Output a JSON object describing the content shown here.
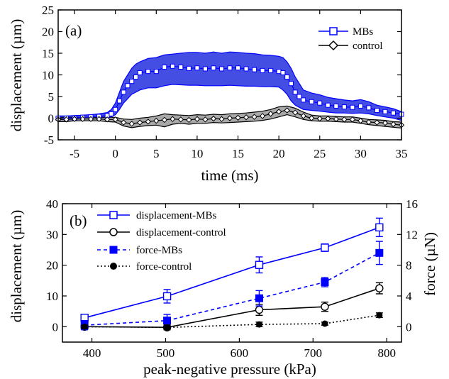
{
  "chart_data": [
    {
      "panel": "(a)",
      "type": "line",
      "xlabel": "time (ms)",
      "ylabel": "displacement (µm)",
      "xlim": [
        -7,
        35
      ],
      "ylim": [
        -5,
        25
      ],
      "xticks": [
        -5,
        0,
        5,
        10,
        15,
        20,
        25,
        30,
        35
      ],
      "yticks": [
        -5,
        0,
        5,
        10,
        15,
        20,
        25
      ],
      "legend_position": "top-right",
      "series": [
        {
          "name": "MBs",
          "color": "#0000ff",
          "band_color": "#3b44e0",
          "marker": "open-square",
          "x": [
            -7,
            -6,
            -5,
            -4,
            -3,
            -2,
            -1,
            -0.5,
            0,
            0.5,
            1,
            1.5,
            2,
            2.5,
            3,
            4,
            5,
            6,
            7,
            8,
            9,
            10,
            11,
            12,
            13,
            14,
            15,
            16,
            17,
            18,
            19,
            20,
            20.5,
            21,
            21.5,
            22,
            22.5,
            23,
            24,
            25,
            26,
            27,
            28,
            29,
            30,
            31,
            32,
            33,
            34,
            35
          ],
          "y": [
            0,
            0,
            0,
            0.2,
            0.3,
            0.4,
            0.6,
            1,
            2,
            4,
            6,
            7.5,
            8.5,
            9.5,
            10.5,
            10.8,
            10.8,
            11.8,
            12,
            11.8,
            11.5,
            11.6,
            11.4,
            11.6,
            11.4,
            11.6,
            11.6,
            11.4,
            11.2,
            11,
            11,
            10.8,
            10.5,
            9.5,
            8,
            6,
            5,
            4.2,
            3.8,
            3.5,
            3,
            2.8,
            2.6,
            2.5,
            2.8,
            2.4,
            1.8,
            1.5,
            1.2,
            0.9
          ],
          "lower": [
            -0.5,
            -0.5,
            -0.4,
            -0.3,
            -0.2,
            -0.2,
            0,
            0.3,
            0.8,
            2,
            3.5,
            4.5,
            5.5,
            6,
            6.5,
            7,
            7,
            7.5,
            7.8,
            7.7,
            7.6,
            7.6,
            7.5,
            7.5,
            7.5,
            7.6,
            7.5,
            7.4,
            7.4,
            7.3,
            7.3,
            7.2,
            6.5,
            5.5,
            4,
            3,
            2.5,
            2,
            1.8,
            1.6,
            1.4,
            1.2,
            1.2,
            1.1,
            1.2,
            1,
            0.6,
            0.3,
            0,
            -0.5
          ],
          "upper": [
            0.5,
            0.5,
            0.6,
            0.7,
            0.8,
            1,
            1.3,
            2,
            3.5,
            6,
            8.5,
            10,
            11.5,
            12.5,
            13,
            13.8,
            14,
            14.6,
            14.8,
            15,
            15.2,
            15.2,
            15,
            15.3,
            15,
            15.3,
            15.2,
            15,
            14.9,
            14.6,
            14.5,
            14.3,
            14,
            13,
            11.5,
            9.5,
            8,
            6.5,
            5.8,
            5.4,
            4.8,
            4.5,
            4.2,
            4,
            4.3,
            3.8,
            3,
            2.6,
            2.2,
            1.5
          ]
        },
        {
          "name": "control",
          "color": "#000000",
          "band_color": "#a0a0a0",
          "marker": "open-diamond",
          "x": [
            -7,
            -6,
            -5,
            -4,
            -3,
            -2,
            -1,
            0,
            1,
            2,
            3,
            4,
            5,
            6,
            7,
            8,
            9,
            10,
            11,
            12,
            13,
            14,
            15,
            16,
            17,
            18,
            19,
            20,
            21,
            22,
            23,
            24,
            25,
            26,
            27,
            28,
            29,
            30,
            31,
            32,
            33,
            34,
            35
          ],
          "y": [
            -0.3,
            -0.3,
            -0.2,
            -0.2,
            -0.2,
            -0.2,
            -0.3,
            -0.3,
            -1,
            -1.3,
            -1,
            -0.8,
            -0.6,
            -0.4,
            -0.2,
            -0.3,
            -0.4,
            -0.2,
            -0.3,
            -0.1,
            -0.2,
            0,
            0.1,
            0.2,
            0.3,
            0.5,
            1,
            1.5,
            1.8,
            1.3,
            0.5,
            0,
            -0.1,
            -0.1,
            -0.2,
            -0.3,
            -0.3,
            -0.6,
            -0.9,
            -1,
            -1.1,
            -1.4,
            -1.6
          ],
          "lower": [
            -0.8,
            -0.8,
            -0.6,
            -0.6,
            -0.6,
            -0.6,
            -0.8,
            -0.9,
            -1.8,
            -2.2,
            -1.9,
            -1.7,
            -1.6,
            -2,
            -1.4,
            -1.2,
            -1.4,
            -1.2,
            -1.2,
            -1,
            -1.1,
            -1,
            -0.9,
            -0.8,
            -0.7,
            -0.5,
            -0.2,
            0.3,
            0.8,
            0.3,
            -0.3,
            -0.6,
            -0.7,
            -0.7,
            -0.8,
            -0.9,
            -0.9,
            -1.2,
            -1.5,
            -1.7,
            -1.9,
            -2.1,
            -2.3
          ],
          "upper": [
            0.2,
            0.2,
            0.2,
            0.2,
            0.2,
            0.2,
            0.2,
            0.2,
            -0.2,
            -0.3,
            0,
            0.2,
            0.5,
            1,
            0.8,
            0.7,
            0.6,
            0.8,
            0.7,
            0.9,
            0.8,
            1,
            1.1,
            1.2,
            1.4,
            1.6,
            2,
            2.6,
            2.8,
            2.3,
            1.4,
            0.7,
            0.5,
            0.5,
            0.4,
            0.3,
            0.3,
            0,
            -0.3,
            -0.4,
            -0.5,
            -0.8,
            -0.9
          ]
        }
      ]
    },
    {
      "panel": "(b)",
      "type": "line",
      "xlabel": "peak-negative pressure (kPa)",
      "ylabel": "displacement (µm)",
      "ylabel_right": "force (µN)",
      "xlim": [
        360,
        820
      ],
      "ylim": [
        -5,
        40
      ],
      "ylim_right": [
        -2,
        16
      ],
      "xticks": [
        400,
        500,
        600,
        700,
        800
      ],
      "yticks": [
        0,
        10,
        20,
        30,
        40
      ],
      "yticks_right": [
        0,
        4,
        8,
        12,
        16
      ],
      "legend_position": "top-left",
      "x": [
        390,
        502,
        627,
        716,
        790
      ],
      "series": [
        {
          "name": "displacement-MBs",
          "axis": "left",
          "color": "#0000ff",
          "dash": "solid",
          "marker": "open-square",
          "values": [
            2.9,
            9.9,
            20.1,
            25.7,
            32.3
          ],
          "error": [
            1,
            2.2,
            2.6,
            1.2,
            3
          ]
        },
        {
          "name": "displacement-control",
          "axis": "left",
          "color": "#000000",
          "dash": "solid",
          "marker": "open-circle",
          "values": [
            0,
            -0.2,
            5.5,
            6.5,
            12.5
          ],
          "error": [
            0.8,
            0.8,
            1.8,
            1.5,
            1.8
          ]
        },
        {
          "name": "force-MBs",
          "axis": "right",
          "color": "#0000ff",
          "dash": "dashed",
          "marker": "filled-square",
          "values": [
            0.2,
            0.8,
            3.7,
            5.8,
            9.6
          ],
          "error": [
            0.6,
            0.8,
            1,
            0.6,
            1.5
          ]
        },
        {
          "name": "force-control",
          "axis": "right",
          "color": "#000000",
          "dash": "dotted",
          "marker": "filled-circle",
          "values": [
            0,
            -0.1,
            0.3,
            0.4,
            1.5
          ],
          "error": [
            0.2,
            0.2,
            0.3,
            0.2,
            0.3
          ]
        }
      ]
    }
  ]
}
